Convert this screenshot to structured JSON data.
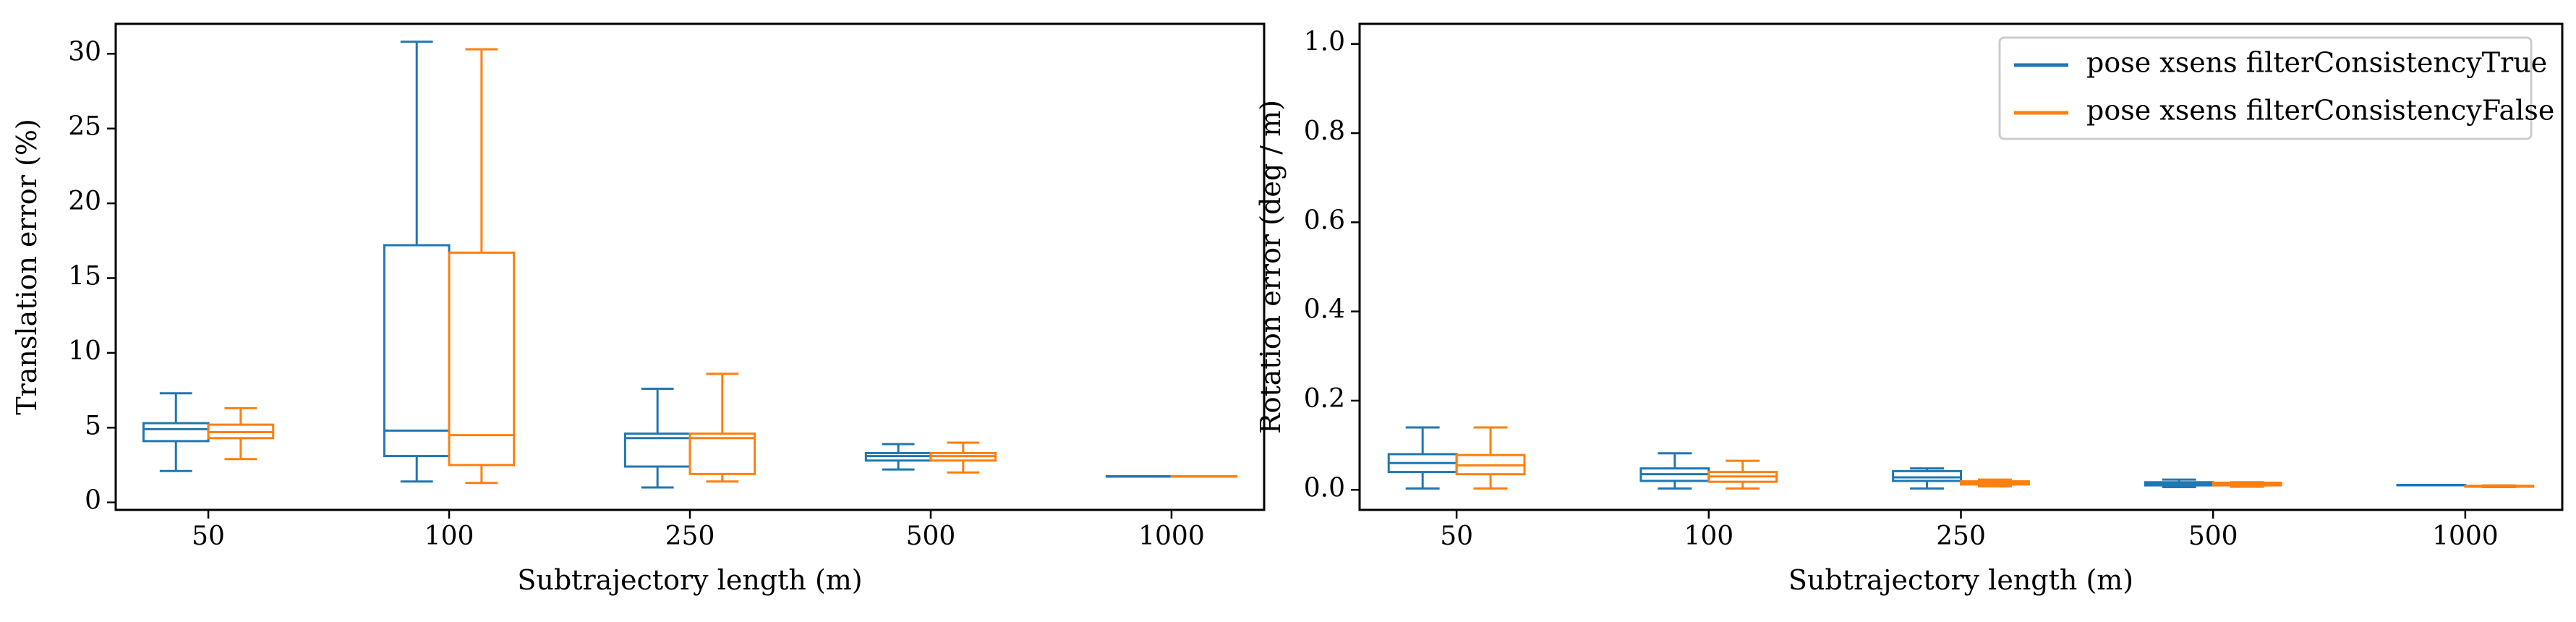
{
  "chart_data": [
    {
      "type": "box",
      "xlabel": "Subtrajectory length (m)",
      "ylabel": "Translation error (%)",
      "categories": [
        "50",
        "100",
        "250",
        "500",
        "1000"
      ],
      "yticks": [
        "0",
        "5",
        "10",
        "15",
        "20",
        "25",
        "30"
      ],
      "ylim": [
        -0.5,
        32.0
      ],
      "grid": false,
      "series": [
        {
          "color": "#1f77b4",
          "boxes": [
            {
              "whislo": 2.1,
              "q1": 4.1,
              "med": 4.9,
              "q3": 5.3,
              "whishi": 7.3
            },
            {
              "whislo": 1.4,
              "q1": 3.1,
              "med": 4.8,
              "q3": 17.2,
              "whishi": 30.8
            },
            {
              "whislo": 1.0,
              "q1": 2.4,
              "med": 4.3,
              "q3": 4.6,
              "whishi": 7.6
            },
            {
              "whislo": 2.2,
              "q1": 2.8,
              "med": 3.1,
              "q3": 3.3,
              "whishi": 3.9
            },
            {
              "whislo": 1.75,
              "q1": 1.75,
              "med": 1.75,
              "q3": 1.75,
              "whishi": 1.75
            }
          ]
        },
        {
          "color": "#ff7f0e",
          "boxes": [
            {
              "whislo": 2.9,
              "q1": 4.3,
              "med": 4.7,
              "q3": 5.2,
              "whishi": 6.3
            },
            {
              "whislo": 1.3,
              "q1": 2.5,
              "med": 4.5,
              "q3": 16.7,
              "whishi": 30.3
            },
            {
              "whislo": 1.4,
              "q1": 1.9,
              "med": 4.3,
              "q3": 4.6,
              "whishi": 8.6
            },
            {
              "whislo": 2.0,
              "q1": 2.8,
              "med": 3.1,
              "q3": 3.3,
              "whishi": 4.0
            },
            {
              "whislo": 1.75,
              "q1": 1.75,
              "med": 1.75,
              "q3": 1.75,
              "whishi": 1.75
            }
          ]
        }
      ]
    },
    {
      "type": "box",
      "xlabel": "Subtrajectory length (m)",
      "ylabel": "Rotation error (deg / m)",
      "categories": [
        "50",
        "100",
        "250",
        "500",
        "1000"
      ],
      "yticks": [
        "0.0",
        "0.2",
        "0.4",
        "0.6",
        "0.8",
        "1.0"
      ],
      "ylim": [
        -0.045,
        1.045
      ],
      "grid": false,
      "legend": {
        "position": "upper right",
        "entries": [
          {
            "label": "pose xsens filterConsistencyTrue",
            "color": "#1f77b4"
          },
          {
            "label": "pose xsens filterConsistencyFalse",
            "color": "#ff7f0e"
          }
        ]
      },
      "series": [
        {
          "color": "#1f77b4",
          "boxes": [
            {
              "whislo": 0.003,
              "q1": 0.04,
              "med": 0.06,
              "q3": 0.08,
              "whishi": 0.14
            },
            {
              "whislo": 0.003,
              "q1": 0.02,
              "med": 0.035,
              "q3": 0.048,
              "whishi": 0.082
            },
            {
              "whislo": 0.003,
              "q1": 0.02,
              "med": 0.028,
              "q3": 0.042,
              "whishi": 0.048
            },
            {
              "whislo": 0.006,
              "q1": 0.01,
              "med": 0.014,
              "q3": 0.017,
              "whishi": 0.023
            },
            {
              "whislo": 0.011,
              "q1": 0.011,
              "med": 0.011,
              "q3": 0.011,
              "whishi": 0.011
            }
          ]
        },
        {
          "color": "#ff7f0e",
          "boxes": [
            {
              "whislo": 0.003,
              "q1": 0.035,
              "med": 0.055,
              "q3": 0.078,
              "whishi": 0.14
            },
            {
              "whislo": 0.003,
              "q1": 0.018,
              "med": 0.03,
              "q3": 0.04,
              "whishi": 0.065
            },
            {
              "whislo": 0.008,
              "q1": 0.012,
              "med": 0.016,
              "q3": 0.019,
              "whishi": 0.023
            },
            {
              "whislo": 0.007,
              "q1": 0.01,
              "med": 0.013,
              "q3": 0.016,
              "whishi": 0.017
            },
            {
              "whislo": 0.006,
              "q1": 0.007,
              "med": 0.008,
              "q3": 0.009,
              "whishi": 0.01
            }
          ]
        }
      ]
    }
  ]
}
